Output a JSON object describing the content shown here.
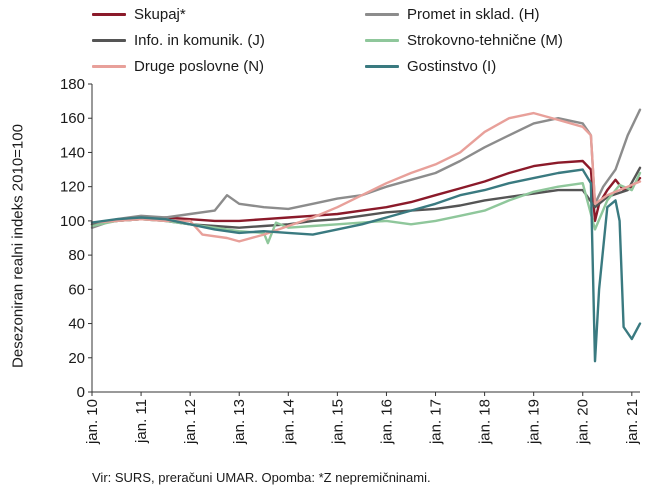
{
  "chart_data": {
    "type": "line",
    "ylabel": "Desezoniran realni indeks 2010=100",
    "ylim": [
      0,
      180
    ],
    "yticks": [
      0,
      20,
      40,
      60,
      80,
      100,
      120,
      140,
      160,
      180
    ],
    "xlabels": [
      "jan. 10",
      "jan. 11",
      "jan. 12",
      "jan. 13",
      "jan. 14",
      "jan. 15",
      "jan. 16",
      "jan. 17",
      "jan. 18",
      "jan. 19",
      "jan. 20",
      "jan. 21"
    ],
    "x_start": "2010-01",
    "x_end": "2021-03",
    "grid": "none",
    "legend_position": "top",
    "note": "Vir: SURS, preračuni UMAR. Opomba: *Z nepremičninami.",
    "series": [
      {
        "name": "Skupaj*",
        "color": "#8b1a2a",
        "points": [
          [
            "2010-01",
            98
          ],
          [
            "2010-07",
            100
          ],
          [
            "2011-01",
            101
          ],
          [
            "2011-07",
            102
          ],
          [
            "2012-01",
            101
          ],
          [
            "2012-07",
            100
          ],
          [
            "2013-01",
            100
          ],
          [
            "2013-07",
            101
          ],
          [
            "2014-01",
            102
          ],
          [
            "2014-07",
            103
          ],
          [
            "2015-01",
            104
          ],
          [
            "2015-07",
            106
          ],
          [
            "2016-01",
            108
          ],
          [
            "2016-07",
            111
          ],
          [
            "2017-01",
            115
          ],
          [
            "2017-07",
            119
          ],
          [
            "2018-01",
            123
          ],
          [
            "2018-07",
            128
          ],
          [
            "2019-01",
            132
          ],
          [
            "2019-07",
            134
          ],
          [
            "2020-01",
            135
          ],
          [
            "2020-03",
            130
          ],
          [
            "2020-04",
            100
          ],
          [
            "2020-05",
            110
          ],
          [
            "2020-07",
            118
          ],
          [
            "2020-09",
            124
          ],
          [
            "2020-11",
            118
          ],
          [
            "2021-01",
            120
          ],
          [
            "2021-03",
            125
          ]
        ]
      },
      {
        "name": "Promet in sklad. (H)",
        "color": "#8c8c8c",
        "points": [
          [
            "2010-01",
            96
          ],
          [
            "2010-07",
            101
          ],
          [
            "2011-01",
            103
          ],
          [
            "2011-07",
            102
          ],
          [
            "2012-01",
            104
          ],
          [
            "2012-07",
            106
          ],
          [
            "2012-10",
            115
          ],
          [
            "2013-01",
            110
          ],
          [
            "2013-07",
            108
          ],
          [
            "2014-01",
            107
          ],
          [
            "2014-07",
            110
          ],
          [
            "2015-01",
            113
          ],
          [
            "2015-07",
            115
          ],
          [
            "2016-01",
            120
          ],
          [
            "2016-07",
            124
          ],
          [
            "2017-01",
            128
          ],
          [
            "2017-07",
            135
          ],
          [
            "2018-01",
            143
          ],
          [
            "2018-07",
            150
          ],
          [
            "2019-01",
            157
          ],
          [
            "2019-07",
            160
          ],
          [
            "2020-01",
            157
          ],
          [
            "2020-03",
            150
          ],
          [
            "2020-04",
            110
          ],
          [
            "2020-06",
            120
          ],
          [
            "2020-09",
            130
          ],
          [
            "2020-12",
            150
          ],
          [
            "2021-01",
            155
          ],
          [
            "2021-03",
            165
          ]
        ]
      },
      {
        "name": "Info. in komunik. (J)",
        "color": "#555555",
        "points": [
          [
            "2010-01",
            98
          ],
          [
            "2010-07",
            100
          ],
          [
            "2011-01",
            101
          ],
          [
            "2011-07",
            100
          ],
          [
            "2012-01",
            98
          ],
          [
            "2012-07",
            97
          ],
          [
            "2013-01",
            96
          ],
          [
            "2013-07",
            97
          ],
          [
            "2014-01",
            98
          ],
          [
            "2014-07",
            100
          ],
          [
            "2015-01",
            101
          ],
          [
            "2015-07",
            103
          ],
          [
            "2016-01",
            105
          ],
          [
            "2016-07",
            106
          ],
          [
            "2017-01",
            107
          ],
          [
            "2017-07",
            109
          ],
          [
            "2018-01",
            112
          ],
          [
            "2018-07",
            114
          ],
          [
            "2019-01",
            116
          ],
          [
            "2019-07",
            118
          ],
          [
            "2020-01",
            118
          ],
          [
            "2020-04",
            108
          ],
          [
            "2020-07",
            114
          ],
          [
            "2020-12",
            118
          ],
          [
            "2021-03",
            131
          ]
        ]
      },
      {
        "name": "Strokovno-tehnične (M)",
        "color": "#8fc79b",
        "points": [
          [
            "2010-01",
            97
          ],
          [
            "2010-07",
            100
          ],
          [
            "2011-01",
            101
          ],
          [
            "2011-07",
            100
          ],
          [
            "2012-01",
            98
          ],
          [
            "2012-07",
            96
          ],
          [
            "2013-01",
            94
          ],
          [
            "2013-07",
            93
          ],
          [
            "2013-08",
            87
          ],
          [
            "2013-10",
            99
          ],
          [
            "2014-01",
            96
          ],
          [
            "2014-07",
            97
          ],
          [
            "2015-01",
            98
          ],
          [
            "2015-07",
            99
          ],
          [
            "2016-01",
            100
          ],
          [
            "2016-07",
            98
          ],
          [
            "2017-01",
            100
          ],
          [
            "2017-07",
            103
          ],
          [
            "2018-01",
            106
          ],
          [
            "2018-07",
            112
          ],
          [
            "2019-01",
            117
          ],
          [
            "2019-07",
            120
          ],
          [
            "2020-01",
            122
          ],
          [
            "2020-04",
            95
          ],
          [
            "2020-07",
            112
          ],
          [
            "2020-10",
            121
          ],
          [
            "2021-01",
            118
          ],
          [
            "2021-03",
            128
          ]
        ]
      },
      {
        "name": "Druge poslovne (N)",
        "color": "#e8a09a",
        "points": [
          [
            "2010-01",
            99
          ],
          [
            "2010-07",
            100
          ],
          [
            "2011-01",
            101
          ],
          [
            "2011-07",
            100
          ],
          [
            "2012-01",
            100
          ],
          [
            "2012-04",
            92
          ],
          [
            "2012-10",
            90
          ],
          [
            "2013-01",
            88
          ],
          [
            "2013-07",
            92
          ],
          [
            "2014-01",
            97
          ],
          [
            "2014-07",
            102
          ],
          [
            "2015-01",
            108
          ],
          [
            "2015-07",
            115
          ],
          [
            "2016-01",
            122
          ],
          [
            "2016-07",
            128
          ],
          [
            "2017-01",
            133
          ],
          [
            "2017-07",
            140
          ],
          [
            "2018-01",
            152
          ],
          [
            "2018-07",
            160
          ],
          [
            "2019-01",
            163
          ],
          [
            "2019-07",
            159
          ],
          [
            "2020-01",
            155
          ],
          [
            "2020-03",
            150
          ],
          [
            "2020-04",
            110
          ],
          [
            "2020-07",
            115
          ],
          [
            "2020-12",
            120
          ],
          [
            "2021-03",
            123
          ]
        ]
      },
      {
        "name": "Gostinstvo (I)",
        "color": "#3a7a80",
        "points": [
          [
            "2010-01",
            99
          ],
          [
            "2010-07",
            101
          ],
          [
            "2011-01",
            102
          ],
          [
            "2011-07",
            101
          ],
          [
            "2012-01",
            98
          ],
          [
            "2012-07",
            95
          ],
          [
            "2013-01",
            93
          ],
          [
            "2013-07",
            94
          ],
          [
            "2014-01",
            93
          ],
          [
            "2014-07",
            92
          ],
          [
            "2015-01",
            95
          ],
          [
            "2015-07",
            98
          ],
          [
            "2016-01",
            102
          ],
          [
            "2016-07",
            106
          ],
          [
            "2017-01",
            110
          ],
          [
            "2017-07",
            115
          ],
          [
            "2018-01",
            118
          ],
          [
            "2018-07",
            122
          ],
          [
            "2019-01",
            125
          ],
          [
            "2019-07",
            128
          ],
          [
            "2020-01",
            130
          ],
          [
            "2020-03",
            122
          ],
          [
            "2020-04",
            18
          ],
          [
            "2020-05",
            60
          ],
          [
            "2020-07",
            108
          ],
          [
            "2020-09",
            112
          ],
          [
            "2020-10",
            100
          ],
          [
            "2020-11",
            38
          ],
          [
            "2021-01",
            31
          ],
          [
            "2021-03",
            40
          ]
        ]
      }
    ]
  }
}
